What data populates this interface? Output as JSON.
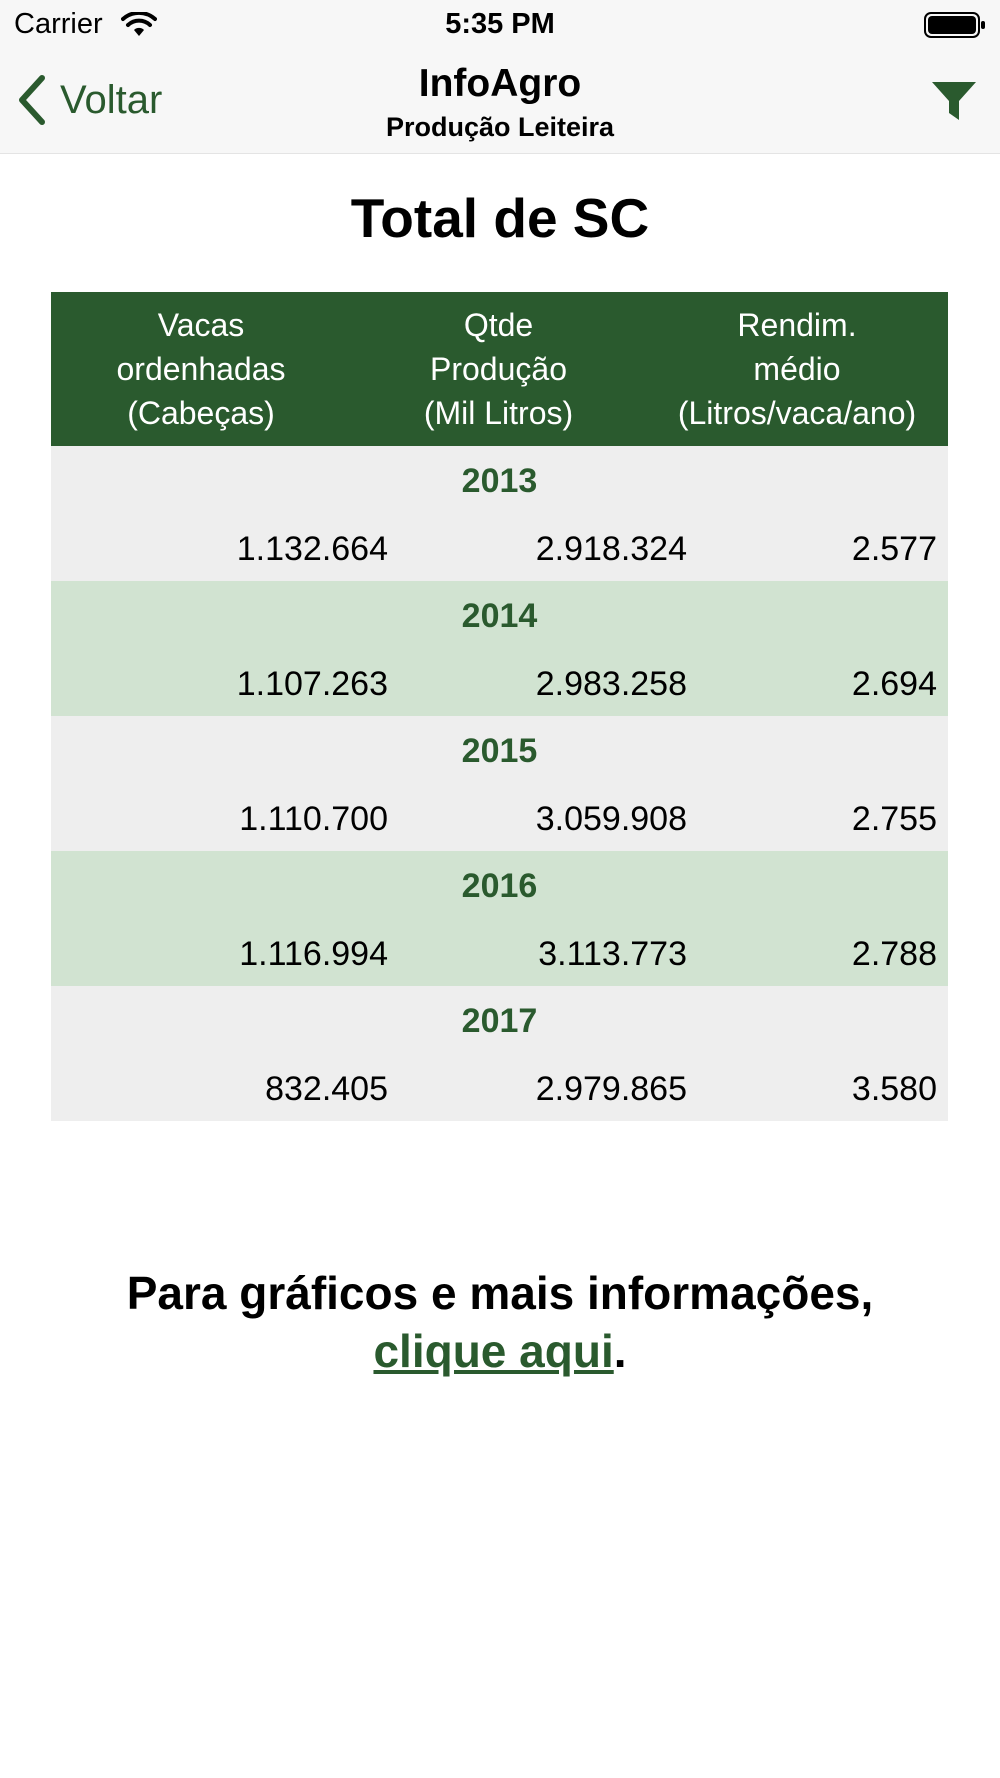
{
  "status_bar": {
    "carrier": "Carrier",
    "time": "5:35 PM"
  },
  "nav": {
    "back_label": "Voltar",
    "title": "InfoAgro",
    "subtitle": "Produção Leiteira",
    "filter_icon": "filter-icon"
  },
  "page_title": "Total de SC",
  "table": {
    "headers": [
      "Vacas\nordenhadas\n(Cabeças)",
      "Qtde\nProdução\n(Mil Litros)",
      "Rendim.\nmédio\n(Litros/vaca/ano)"
    ],
    "rows": [
      {
        "year": "2013",
        "vacas": "1.132.664",
        "producao": "2.918.324",
        "rendimento": "2.577"
      },
      {
        "year": "2014",
        "vacas": "1.107.263",
        "producao": "2.983.258",
        "rendimento": "2.694"
      },
      {
        "year": "2015",
        "vacas": "1.110.700",
        "producao": "3.059.908",
        "rendimento": "2.755"
      },
      {
        "year": "2016",
        "vacas": "1.116.994",
        "producao": "3.113.773",
        "rendimento": "2.788"
      },
      {
        "year": "2017",
        "vacas": "832.405",
        "producao": "2.979.865",
        "rendimento": "3.580"
      }
    ]
  },
  "footer": {
    "text": "Para gráficos e mais informações,",
    "link": "clique aqui",
    "suffix": "."
  },
  "colors": {
    "accent": "#2a5a2e",
    "row_light": "#eeeeee",
    "row_green": "#d1e3d1"
  }
}
